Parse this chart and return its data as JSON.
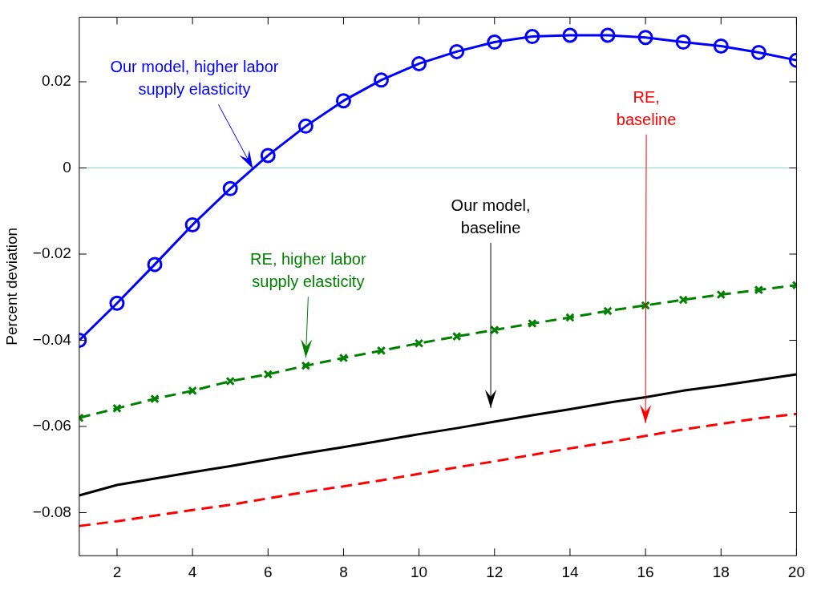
{
  "chart_data": {
    "type": "line",
    "ylabel": "Percent deviation",
    "x": [
      1,
      2,
      3,
      4,
      5,
      6,
      7,
      8,
      9,
      10,
      11,
      12,
      13,
      14,
      15,
      16,
      17,
      18,
      19,
      20
    ],
    "xlim": [
      1,
      20
    ],
    "xticks": [
      2,
      4,
      6,
      8,
      10,
      12,
      14,
      16,
      18,
      20
    ],
    "ylim": [
      -0.09,
      0.035
    ],
    "yticks": [
      -0.08,
      -0.06,
      -0.04,
      -0.02,
      0,
      0.02
    ],
    "grid": false,
    "legend": false,
    "ref_lines": [
      {
        "axis": "y",
        "value": 0,
        "color": "#80e0c0"
      }
    ],
    "series": [
      {
        "name": "Our model, higher labor supply elasticity",
        "color": "#0000ff",
        "marker": "circle",
        "line_style": "solid",
        "values": [
          -0.04,
          -0.0314,
          -0.0224,
          -0.0132,
          -0.0048,
          0.0029,
          0.0097,
          0.0156,
          0.0204,
          0.0242,
          0.027,
          0.0292,
          0.0305,
          0.0308,
          0.0308,
          0.0303,
          0.0292,
          0.0283,
          0.0268,
          0.025
        ]
      },
      {
        "name": "RE, higher labor supply elasticity",
        "color": "#008000",
        "marker": "cross",
        "line_style": "dashed",
        "values": [
          -0.058,
          -0.0558,
          -0.0536,
          -0.0517,
          -0.0495,
          -0.0479,
          -0.0459,
          -0.0441,
          -0.0424,
          -0.0407,
          -0.0391,
          -0.0376,
          -0.0361,
          -0.0347,
          -0.0332,
          -0.0319,
          -0.0306,
          -0.0294,
          -0.0283,
          -0.0272
        ]
      },
      {
        "name": "Our model, baseline",
        "color": "#000000",
        "marker": "none",
        "line_style": "solid",
        "values": [
          -0.076,
          -0.0736,
          -0.0721,
          -0.0706,
          -0.0692,
          -0.0677,
          -0.0662,
          -0.0648,
          -0.0633,
          -0.0618,
          -0.0604,
          -0.0589,
          -0.0574,
          -0.056,
          -0.0545,
          -0.0532,
          -0.0517,
          -0.0505,
          -0.0492,
          -0.0479
        ]
      },
      {
        "name": "RE, baseline",
        "color": "#ff0000",
        "marker": "none",
        "line_style": "dashed",
        "values": [
          -0.0831,
          -0.082,
          -0.0807,
          -0.0794,
          -0.0782,
          -0.0767,
          -0.0752,
          -0.0739,
          -0.0725,
          -0.071,
          -0.0695,
          -0.0681,
          -0.0666,
          -0.0651,
          -0.0637,
          -0.0622,
          -0.0607,
          -0.0594,
          -0.0581,
          -0.0571
        ]
      }
    ]
  }
}
